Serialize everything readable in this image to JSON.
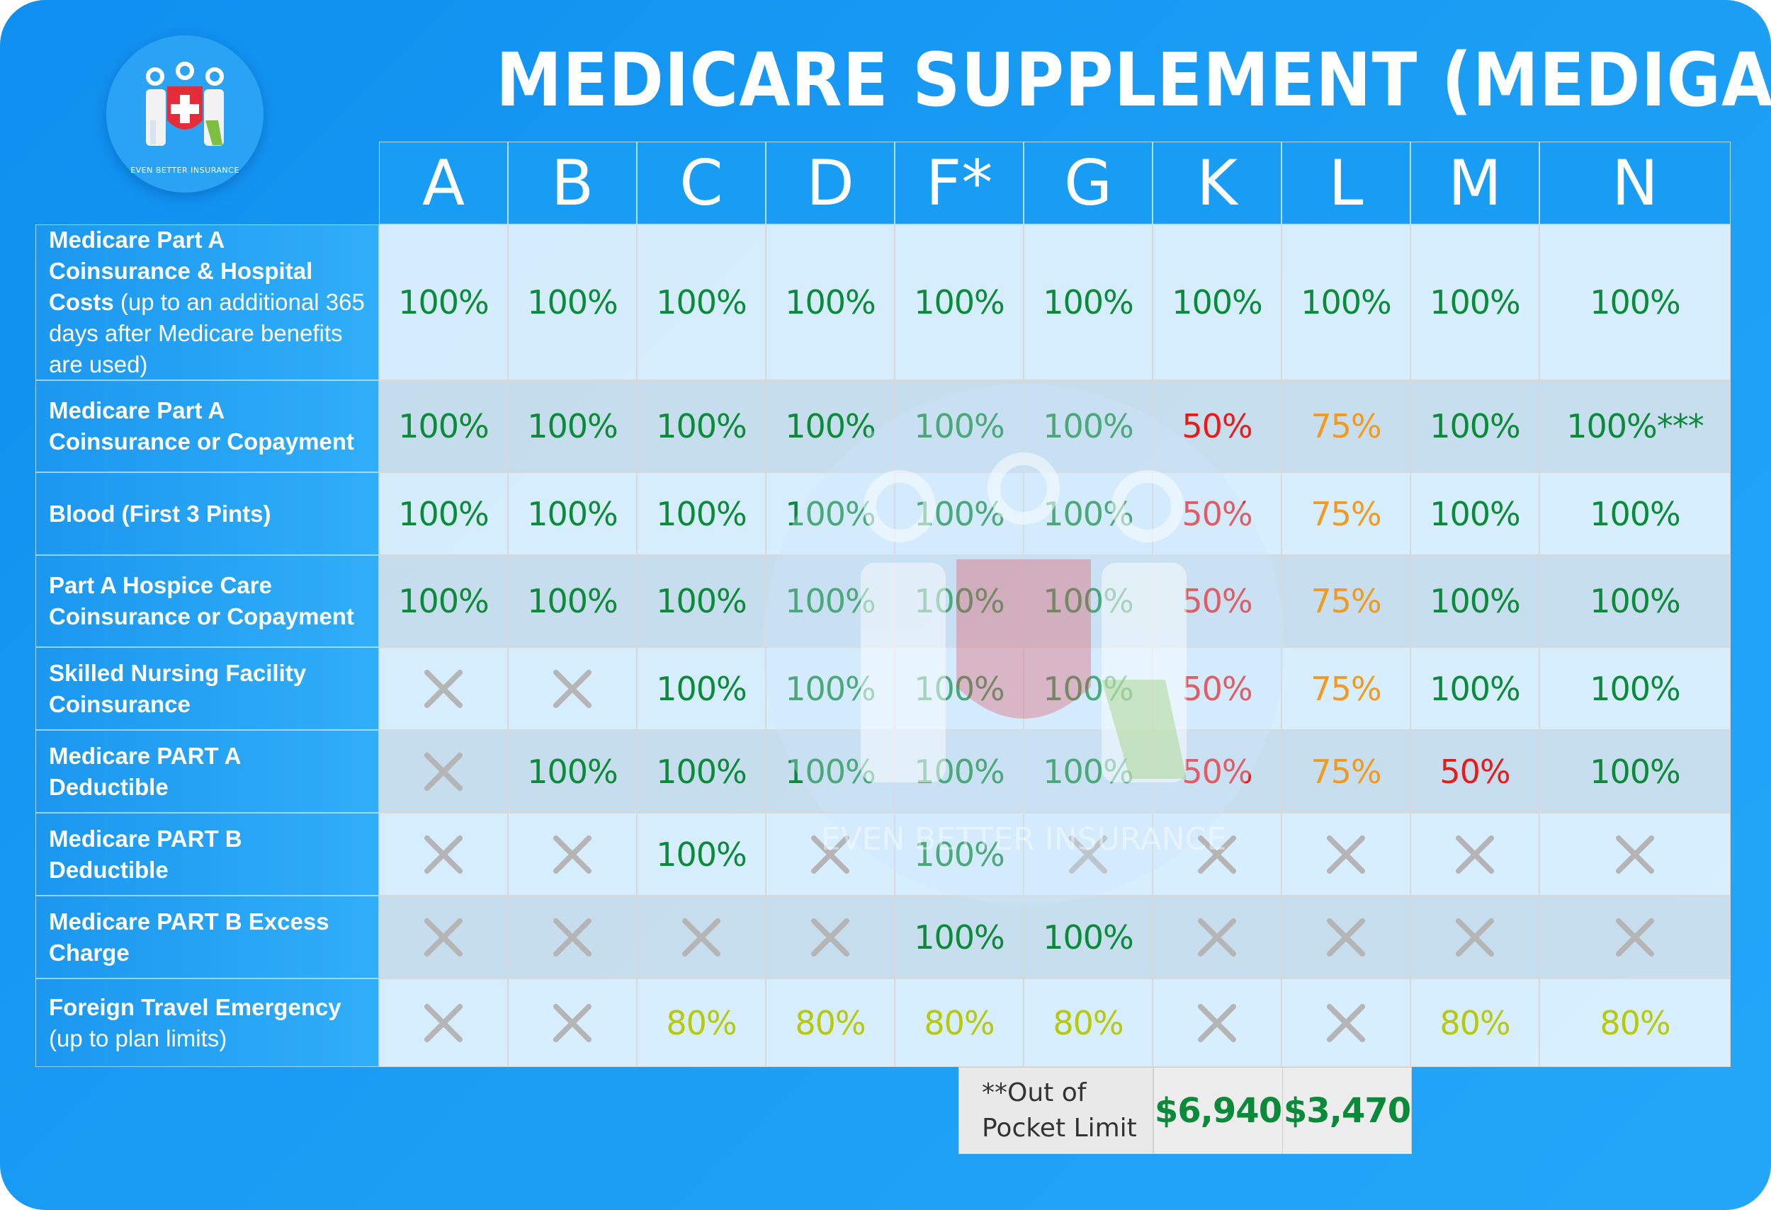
{
  "logo": {
    "caption": "EVEN BETTER INSURANCE",
    "accent": "#e52d3a"
  },
  "title": "MEDICARE SUPPLEMENT (MEDIGAP) PLANS",
  "watermark": {
    "caption": "EVEN BETTER INSURANCE"
  },
  "plans": [
    "A",
    "B",
    "C",
    "D",
    "F*",
    "G",
    "K",
    "L",
    "M",
    "N"
  ],
  "colors": {
    "green": "#0b8a3a",
    "red": "#e81b1b",
    "orange": "#f39a1e",
    "lime": "#b8c80a",
    "cross": "#b5b5b5"
  },
  "rows": [
    {
      "label_bold": "Medicare Part A Coinsurance & Hospital Costs",
      "label_rest": " (up to an additional 365 days after Medicare benefits are used)",
      "cells": [
        [
          "100%",
          "green"
        ],
        [
          "100%",
          "green"
        ],
        [
          "100%",
          "green"
        ],
        [
          "100%",
          "green"
        ],
        [
          "100%",
          "green"
        ],
        [
          "100%",
          "green"
        ],
        [
          "100%",
          "green"
        ],
        [
          "100%",
          "green"
        ],
        [
          "100%",
          "green"
        ],
        [
          "100%",
          "green"
        ]
      ]
    },
    {
      "label_bold": "Medicare Part A Coinsurance or Copayment",
      "label_rest": "",
      "cells": [
        [
          "100%",
          "green"
        ],
        [
          "100%",
          "green"
        ],
        [
          "100%",
          "green"
        ],
        [
          "100%",
          "green"
        ],
        [
          "100%",
          "green"
        ],
        [
          "100%",
          "green"
        ],
        [
          "50%",
          "red"
        ],
        [
          "75%",
          "orange"
        ],
        [
          "100%",
          "green"
        ],
        [
          "100%***",
          "green"
        ]
      ]
    },
    {
      "label_bold": "Blood (First 3 Pints)",
      "label_rest": "",
      "cells": [
        [
          "100%",
          "green"
        ],
        [
          "100%",
          "green"
        ],
        [
          "100%",
          "green"
        ],
        [
          "100%",
          "green"
        ],
        [
          "100%",
          "green"
        ],
        [
          "100%",
          "green"
        ],
        [
          "50%",
          "red"
        ],
        [
          "75%",
          "orange"
        ],
        [
          "100%",
          "green"
        ],
        [
          "100%",
          "green"
        ]
      ]
    },
    {
      "label_bold": "Part A Hospice Care Coinsurance or Copayment",
      "label_rest": "",
      "cells": [
        [
          "100%",
          "green"
        ],
        [
          "100%",
          "green"
        ],
        [
          "100%",
          "green"
        ],
        [
          "100%",
          "green"
        ],
        [
          "100%",
          "green"
        ],
        [
          "100%",
          "green"
        ],
        [
          "50%",
          "red"
        ],
        [
          "75%",
          "orange"
        ],
        [
          "100%",
          "green"
        ],
        [
          "100%",
          "green"
        ]
      ]
    },
    {
      "label_bold": "Skilled Nursing Facility Coinsurance",
      "label_rest": "",
      "cells": [
        [
          "X",
          "cross"
        ],
        [
          "X",
          "cross"
        ],
        [
          "100%",
          "green"
        ],
        [
          "100%",
          "green"
        ],
        [
          "100%",
          "green"
        ],
        [
          "100%",
          "green"
        ],
        [
          "50%",
          "red"
        ],
        [
          "75%",
          "orange"
        ],
        [
          "100%",
          "green"
        ],
        [
          "100%",
          "green"
        ]
      ]
    },
    {
      "label_bold": "Medicare PART A Deductible",
      "label_rest": "",
      "cells": [
        [
          "X",
          "cross"
        ],
        [
          "100%",
          "green"
        ],
        [
          "100%",
          "green"
        ],
        [
          "100%",
          "green"
        ],
        [
          "100%",
          "green"
        ],
        [
          "100%",
          "green"
        ],
        [
          "50%",
          "red"
        ],
        [
          "75%",
          "orange"
        ],
        [
          "50%",
          "red"
        ],
        [
          "100%",
          "green"
        ]
      ]
    },
    {
      "label_bold": "Medicare PART B Deductible",
      "label_rest": "",
      "cells": [
        [
          "X",
          "cross"
        ],
        [
          "X",
          "cross"
        ],
        [
          "100%",
          "green"
        ],
        [
          "X",
          "cross"
        ],
        [
          "100%",
          "green"
        ],
        [
          "X",
          "cross"
        ],
        [
          "X",
          "cross"
        ],
        [
          "X",
          "cross"
        ],
        [
          "X",
          "cross"
        ],
        [
          "X",
          "cross"
        ]
      ]
    },
    {
      "label_bold": "Medicare PART B Excess Charge",
      "label_rest": "",
      "cells": [
        [
          "X",
          "cross"
        ],
        [
          "X",
          "cross"
        ],
        [
          "X",
          "cross"
        ],
        [
          "X",
          "cross"
        ],
        [
          "100%",
          "green"
        ],
        [
          "100%",
          "green"
        ],
        [
          "X",
          "cross"
        ],
        [
          "X",
          "cross"
        ],
        [
          "X",
          "cross"
        ],
        [
          "X",
          "cross"
        ]
      ]
    },
    {
      "label_bold": "Foreign Travel Emergency",
      "label_rest": " (up to plan limits)",
      "cells": [
        [
          "X",
          "cross"
        ],
        [
          "X",
          "cross"
        ],
        [
          "80%",
          "lime"
        ],
        [
          "80%",
          "lime"
        ],
        [
          "80%",
          "lime"
        ],
        [
          "80%",
          "lime"
        ],
        [
          "X",
          "cross"
        ],
        [
          "X",
          "cross"
        ],
        [
          "80%",
          "lime"
        ],
        [
          "80%",
          "lime"
        ]
      ]
    }
  ],
  "out_of_pocket": {
    "label": "**Out of Pocket Limit",
    "k_value": "$6,940",
    "l_value": "$3,470"
  }
}
